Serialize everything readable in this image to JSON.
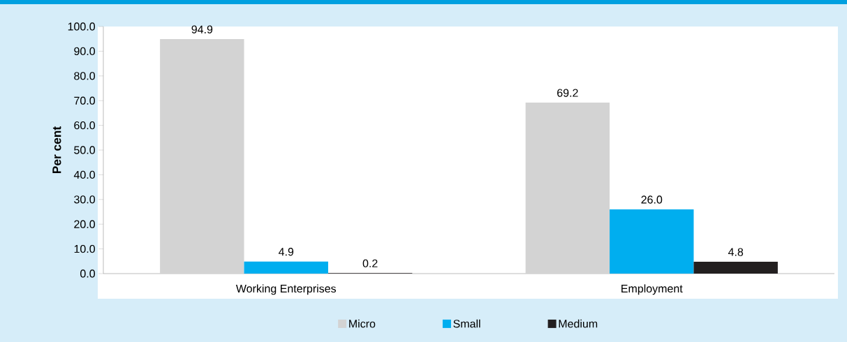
{
  "chart_data": {
    "type": "bar",
    "ylabel": "Per cent",
    "categories": [
      "Working Enterprises",
      "Employment"
    ],
    "series": [
      {
        "name": "Micro",
        "color": "#d3d3d3",
        "values": [
          94.9,
          69.2
        ],
        "value_labels": [
          "94.9",
          "69.2"
        ]
      },
      {
        "name": "Small",
        "color": "#00aeef",
        "values": [
          4.9,
          26.0
        ],
        "value_labels": [
          "4.9",
          "26.0"
        ]
      },
      {
        "name": "Medium",
        "color": "#231f20",
        "values": [
          0.2,
          4.8
        ],
        "value_labels": [
          "0.2",
          "4.8"
        ]
      }
    ],
    "ylim": [
      0,
      100
    ],
    "yticks": [
      {
        "value": 0,
        "label": "0.0"
      },
      {
        "value": 10,
        "label": "10.0"
      },
      {
        "value": 20,
        "label": "20.0"
      },
      {
        "value": 30,
        "label": "30.0"
      },
      {
        "value": 40,
        "label": "40.0"
      },
      {
        "value": 50,
        "label": "50.0"
      },
      {
        "value": 60,
        "label": "60.0"
      },
      {
        "value": 70,
        "label": "70.0"
      },
      {
        "value": 80,
        "label": "80.0"
      },
      {
        "value": 90,
        "label": "90.0"
      },
      {
        "value": 100,
        "label": "100.0"
      }
    ],
    "legend": "bottom",
    "grid": false
  }
}
